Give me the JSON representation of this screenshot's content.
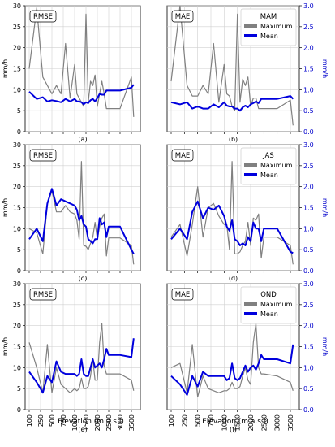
{
  "figure": {
    "xlabel": "Elevation (m a.s.l)",
    "ylabel_left": "mm/h",
    "ylabel_right": "mm/h",
    "xticks": [
      100,
      250,
      500,
      750,
      1000,
      1500,
      2000,
      2500,
      3000,
      3500
    ],
    "left_yticks": [
      0,
      5,
      10,
      15,
      20,
      25,
      30
    ],
    "right_yticks": [
      "0.0",
      "0.5",
      "1.0",
      "1.5",
      "2.0",
      "2.5",
      "3.0"
    ],
    "right_axis_color": "#0000cc",
    "colors": {
      "maximum": "#808080",
      "mean": "#0000dd"
    }
  },
  "chart_data": [
    {
      "panel": "(a)",
      "type": "line",
      "metric_label": "RMSE",
      "axis": "left",
      "ylim": [
        0,
        30
      ],
      "grid": true,
      "x": [
        100,
        200,
        300,
        400,
        500,
        600,
        700,
        800,
        900,
        1000,
        1100,
        1200,
        1300,
        1400,
        1500,
        1600,
        1700,
        1800,
        1900,
        2000,
        2100,
        2200,
        2300,
        2400,
        2500,
        3000,
        3500,
        3600
      ],
      "series": [
        {
          "name": "Maximum",
          "color": "#808080",
          "values": [
            15,
            29.5,
            13,
            11,
            9,
            11,
            9,
            21,
            8,
            16,
            9,
            8,
            7,
            6,
            28,
            7,
            12,
            11,
            13.5,
            6,
            9,
            12,
            9,
            5.5,
            5.5,
            5.5,
            13,
            3.5
          ]
        },
        {
          "name": "Mean",
          "color": "#0000dd",
          "values": [
            9.5,
            7.8,
            8.2,
            7.2,
            7.5,
            7.3,
            7.0,
            7.8,
            7.2,
            7.8,
            7.2,
            7.2,
            7.0,
            6.5,
            7.0,
            6.8,
            7.5,
            7.8,
            7.2,
            8.0,
            9.0,
            8.8,
            8.8,
            9.8,
            9.8,
            9.8,
            10.5,
            11.2
          ]
        }
      ]
    },
    {
      "panel": "(b)",
      "type": "line",
      "metric_label": "MAE",
      "axis": "right",
      "ylim": [
        0,
        3
      ],
      "grid": true,
      "legend_title": "MAM",
      "legend_position": "top-right",
      "x": [
        100,
        200,
        300,
        400,
        500,
        600,
        700,
        800,
        900,
        1000,
        1100,
        1200,
        1300,
        1400,
        1500,
        1600,
        1700,
        1800,
        1900,
        2000,
        2100,
        2200,
        2300,
        2400,
        2500,
        3000,
        3500,
        3600
      ],
      "series": [
        {
          "name": "Maximum",
          "color": "#808080",
          "values": [
            1.2,
            3.0,
            1.1,
            0.85,
            0.85,
            1.1,
            0.9,
            2.1,
            0.7,
            1.6,
            0.9,
            0.85,
            0.6,
            0.5,
            2.8,
            0.7,
            1.25,
            1.1,
            1.3,
            0.6,
            0.8,
            0.8,
            0.55,
            0.55,
            0.55,
            0.55,
            0.75,
            0.15
          ]
        },
        {
          "name": "Mean",
          "color": "#0000dd",
          "values": [
            0.7,
            0.65,
            0.7,
            0.55,
            0.6,
            0.55,
            0.55,
            0.65,
            0.58,
            0.7,
            0.62,
            0.6,
            0.6,
            0.55,
            0.55,
            0.5,
            0.58,
            0.62,
            0.58,
            0.65,
            0.68,
            0.72,
            0.68,
            0.78,
            0.78,
            0.78,
            0.85,
            0.78
          ]
        }
      ]
    },
    {
      "panel": "(c)",
      "type": "line",
      "metric_label": "RMSE",
      "axis": "left",
      "ylim": [
        0,
        30
      ],
      "grid": true,
      "x": [
        100,
        200,
        300,
        400,
        500,
        600,
        700,
        800,
        900,
        1000,
        1100,
        1200,
        1300,
        1400,
        1500,
        1600,
        1700,
        1800,
        1900,
        2000,
        2100,
        2200,
        2300,
        2400,
        2500,
        3000,
        3500,
        3600
      ],
      "series": [
        {
          "name": "Maximum",
          "color": "#808080",
          "values": [
            10,
            9,
            4,
            16,
            19,
            14,
            14,
            15.5,
            14,
            13.5,
            12,
            7.5,
            26,
            6,
            5.8,
            5,
            6.5,
            8,
            11.5,
            7.5,
            10.5,
            12.5,
            13.5,
            3.5,
            7.8,
            7.8,
            6,
            1.5
          ]
        },
        {
          "name": "Mean",
          "color": "#0000dd",
          "values": [
            7.5,
            10,
            7,
            16,
            19.5,
            15.5,
            17,
            16.5,
            16,
            15.5,
            14.5,
            12,
            13,
            11,
            10.5,
            7.5,
            7,
            6.5,
            7.5,
            7.5,
            12.5,
            11,
            11.5,
            8,
            10.5,
            10.5,
            5,
            4
          ]
        }
      ]
    },
    {
      "panel": "(d)",
      "type": "line",
      "metric_label": "MAE",
      "axis": "right",
      "ylim": [
        0,
        3
      ],
      "grid": true,
      "legend_title": "JAS",
      "legend_position": "top-right",
      "x": [
        100,
        200,
        300,
        400,
        500,
        600,
        700,
        800,
        900,
        1000,
        1100,
        1200,
        1300,
        1400,
        1500,
        1600,
        1700,
        1800,
        1900,
        2000,
        2100,
        2200,
        2300,
        2400,
        2500,
        3000,
        3500,
        3600
      ],
      "series": [
        {
          "name": "Maximum",
          "color": "#808080",
          "values": [
            0.8,
            1.1,
            0.35,
            1.1,
            2.0,
            0.8,
            1.5,
            1.6,
            1.3,
            1.1,
            1.1,
            0.5,
            2.6,
            0.4,
            0.4,
            0.45,
            0.6,
            0.7,
            1.15,
            0.6,
            1.25,
            1.2,
            1.35,
            0.3,
            0.8,
            0.8,
            0.6,
            0.15
          ]
        },
        {
          "name": "Mean",
          "color": "#0000dd",
          "values": [
            0.75,
            1.0,
            0.75,
            1.4,
            1.65,
            1.25,
            1.5,
            1.45,
            1.55,
            1.3,
            1.05,
            0.95,
            1.2,
            0.75,
            0.7,
            0.6,
            0.65,
            0.6,
            0.8,
            0.7,
            1.15,
            1.0,
            1.0,
            0.7,
            1.0,
            1.0,
            0.45,
            0.42
          ]
        }
      ]
    },
    {
      "panel": "(e)",
      "type": "line",
      "metric_label": "RMSE",
      "axis": "left",
      "ylim": [
        0,
        30
      ],
      "grid": true,
      "x": [
        100,
        200,
        300,
        400,
        500,
        600,
        700,
        800,
        900,
        1000,
        1100,
        1200,
        1300,
        1400,
        1500,
        1600,
        1700,
        1800,
        1900,
        2000,
        2100,
        2200,
        2300,
        2400,
        2500,
        3000,
        3500,
        3600
      ],
      "series": [
        {
          "name": "Maximum",
          "color": "#808080",
          "values": [
            16,
            10,
            4,
            15.5,
            4,
            10,
            6,
            5,
            4,
            5,
            4.5,
            5,
            7.5,
            5,
            5,
            5.5,
            8,
            12,
            7,
            7,
            16,
            20.5,
            10.5,
            8.5,
            8.5,
            8.5,
            7,
            4.5
          ]
        },
        {
          "name": "Mean",
          "color": "#0000dd",
          "values": [
            9,
            6.5,
            4,
            8,
            6.5,
            11.5,
            9,
            8.5,
            8.5,
            8.5,
            8,
            8.5,
            12,
            8.5,
            8,
            8,
            10,
            12,
            10,
            10.5,
            11,
            10,
            12,
            14.5,
            13,
            13,
            12.5,
            17
          ]
        }
      ]
    },
    {
      "panel": "(f)",
      "type": "line",
      "metric_label": "MAE",
      "axis": "right",
      "ylim": [
        0,
        3
      ],
      "grid": true,
      "legend_title": "OND",
      "legend_position": "top-right",
      "x": [
        100,
        200,
        300,
        400,
        500,
        600,
        700,
        800,
        900,
        1000,
        1100,
        1200,
        1300,
        1400,
        1500,
        1600,
        1700,
        1800,
        1900,
        2000,
        2100,
        2200,
        2300,
        2400,
        2500,
        3000,
        3500,
        3600
      ],
      "series": [
        {
          "name": "Maximum",
          "color": "#808080",
          "values": [
            1.0,
            1.1,
            0.4,
            1.55,
            0.3,
            0.8,
            0.5,
            0.45,
            0.4,
            0.45,
            0.45,
            0.5,
            0.65,
            0.5,
            0.5,
            0.55,
            0.8,
            1.0,
            0.7,
            0.6,
            1.6,
            2.05,
            1.0,
            0.85,
            0.85,
            0.8,
            0.65,
            0.45
          ]
        },
        {
          "name": "Mean",
          "color": "#0000dd",
          "values": [
            0.8,
            0.6,
            0.35,
            0.8,
            0.55,
            0.9,
            0.8,
            0.8,
            0.8,
            0.8,
            0.7,
            0.75,
            1.1,
            0.75,
            0.7,
            0.75,
            0.9,
            1.05,
            0.9,
            1.0,
            1.05,
            0.95,
            1.1,
            1.3,
            1.2,
            1.2,
            1.1,
            1.55
          ]
        }
      ]
    }
  ]
}
